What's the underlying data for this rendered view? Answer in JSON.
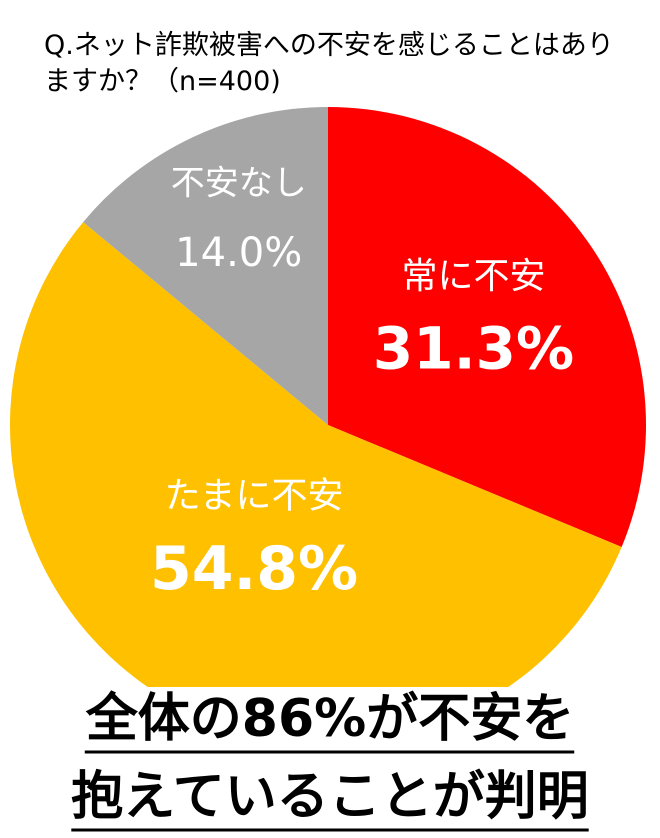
{
  "chart_data": {
    "type": "pie",
    "title": "Q.ネット詐欺被害への不安を感じることはありますか？（n=400)",
    "categories": [
      "常に不安",
      "たまに不安",
      "不安なし"
    ],
    "values": [
      31.3,
      54.8,
      14.0
    ],
    "value_labels": [
      "31.3%",
      "54.8%",
      "14.0%"
    ],
    "colors": [
      "#ff0000",
      "#ffc000",
      "#a6a6a6"
    ],
    "annotations": [
      "全体の86%が不安を",
      "抱えていることが判明"
    ]
  }
}
